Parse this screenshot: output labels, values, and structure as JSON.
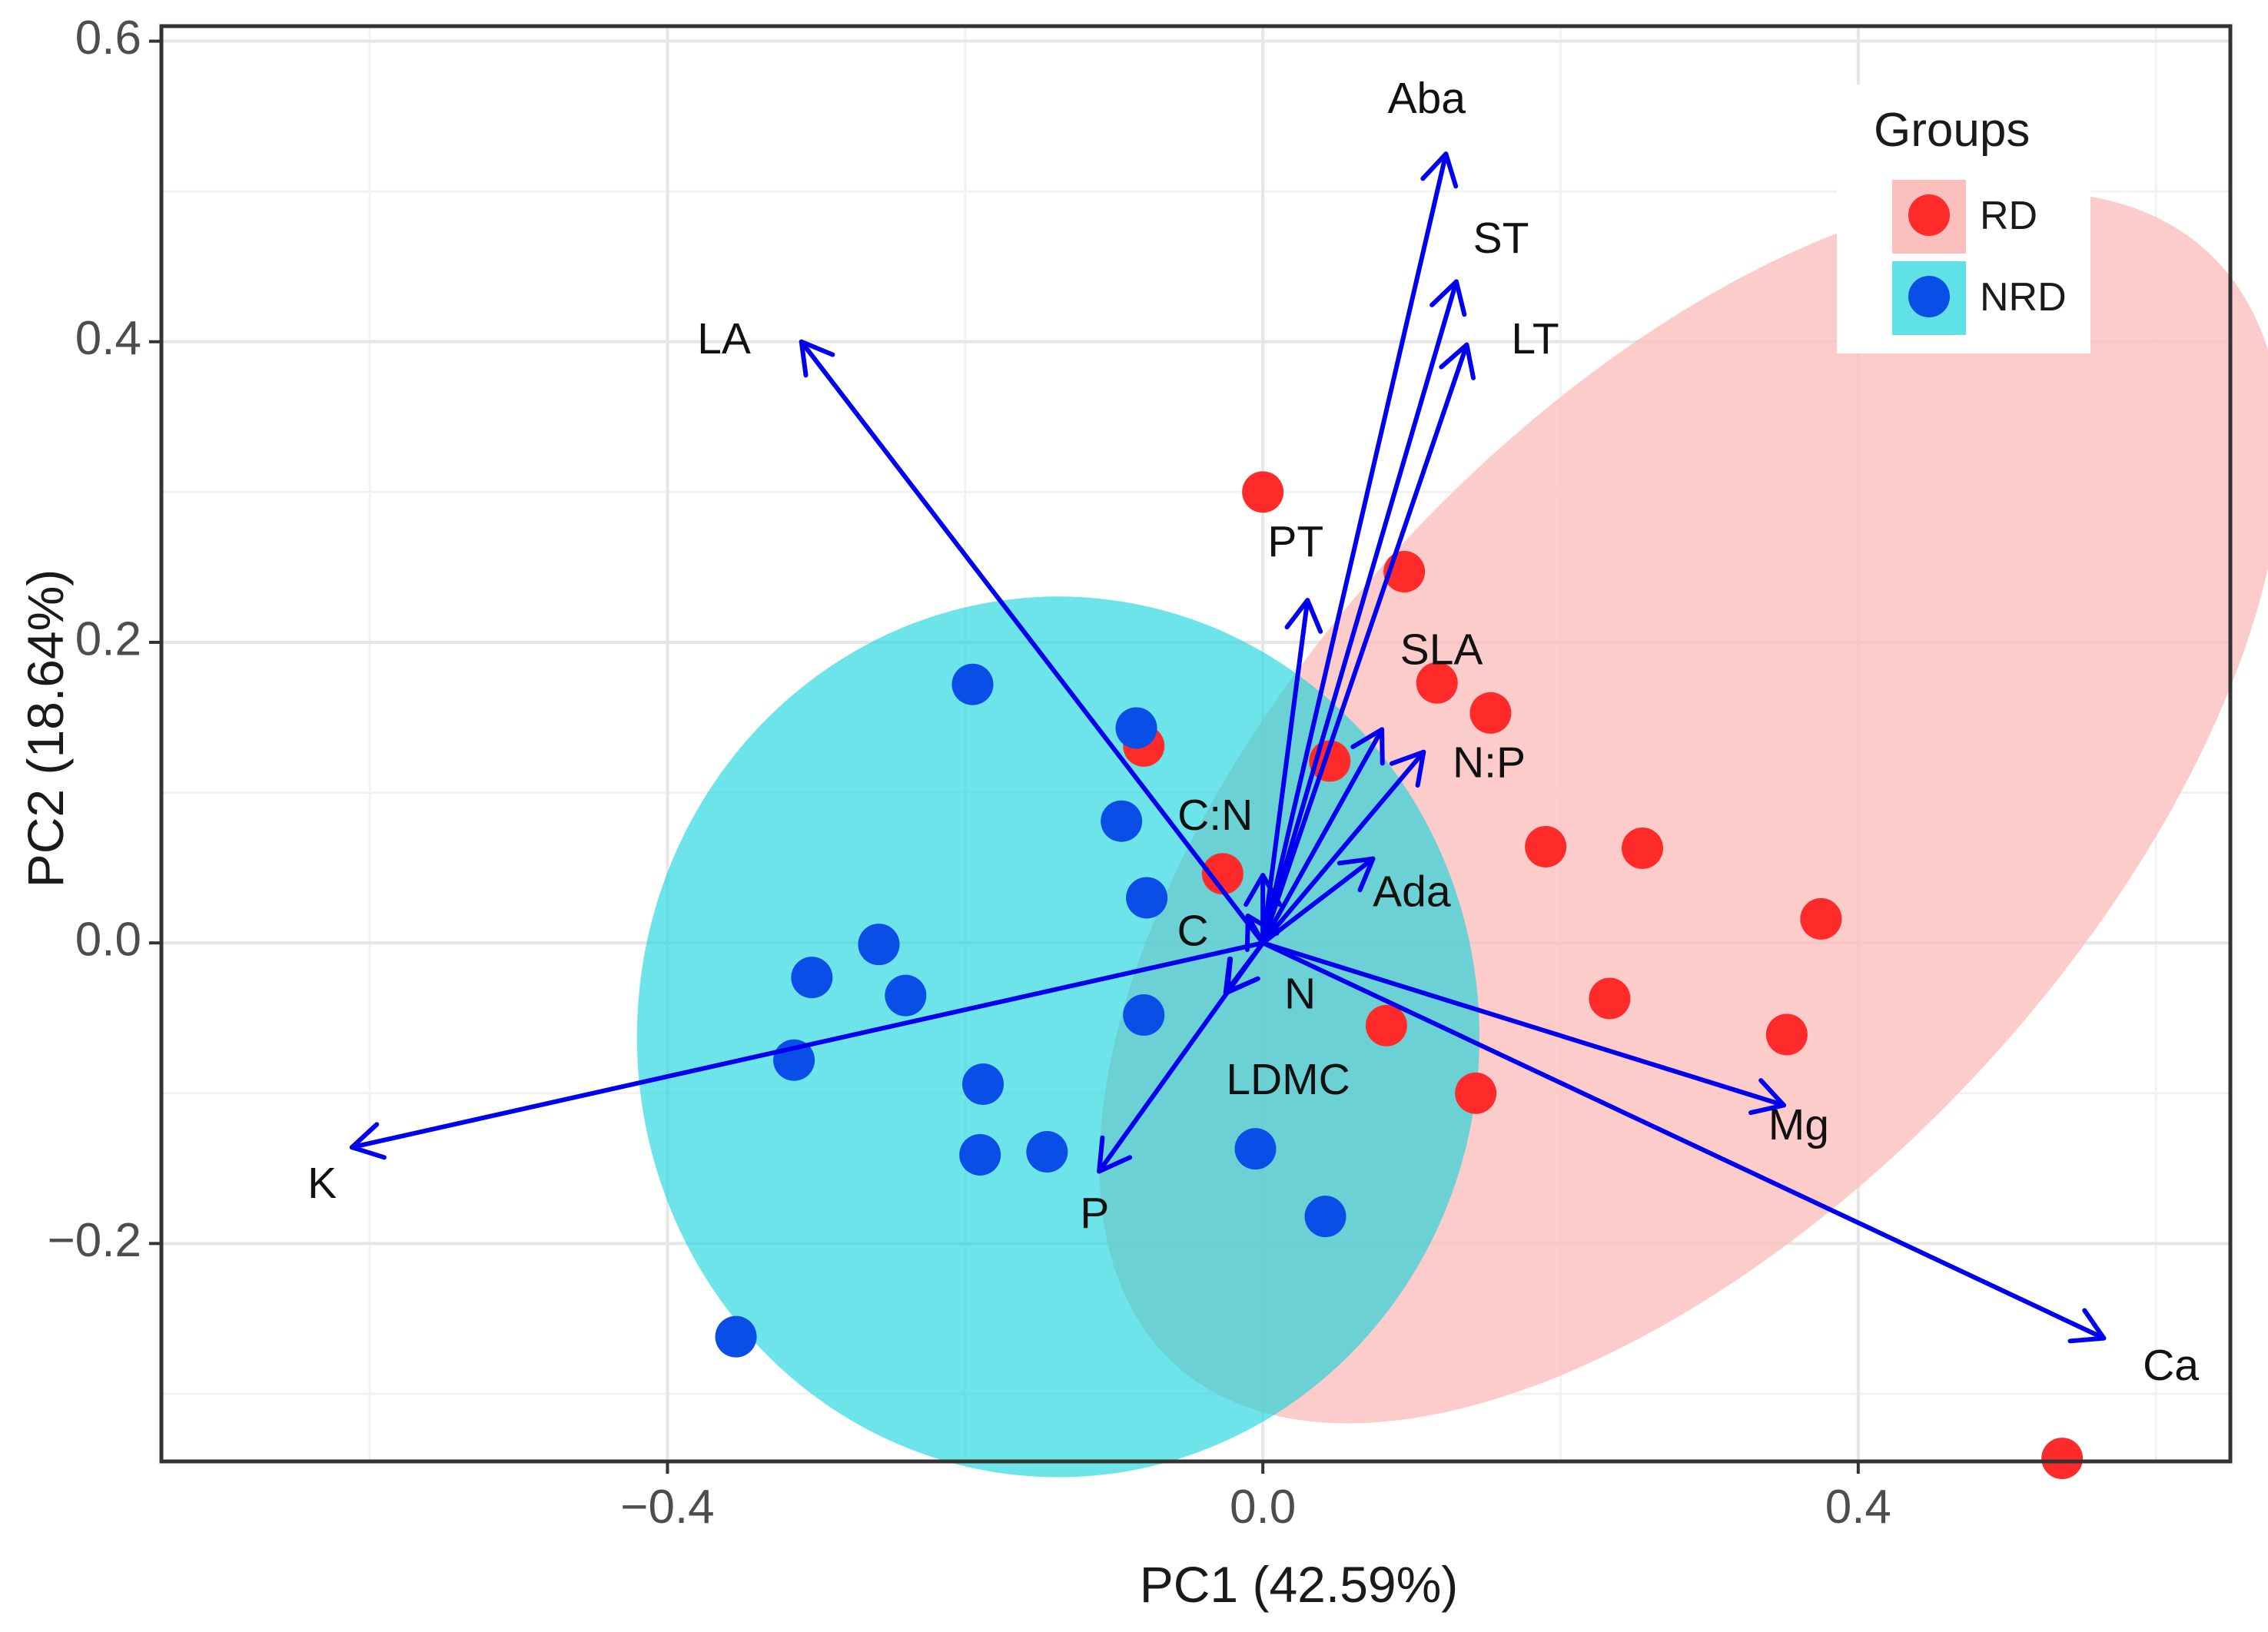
{
  "chart_data": {
    "type": "scatter",
    "subtype": "pca-biplot",
    "title": "",
    "xlabel": "PC1 (42.59%)",
    "ylabel": "PC2 (18.64%)",
    "xlim": [
      -0.74,
      0.65
    ],
    "ylim": [
      -0.345,
      0.61
    ],
    "xticks": [
      -0.4,
      0.0,
      0.4
    ],
    "xtick_labels": [
      "−0.4",
      "0.0",
      "0.4"
    ],
    "yticks": [
      -0.2,
      0.0,
      0.2,
      0.4,
      0.6
    ],
    "ytick_labels": [
      "−0.2",
      "0.0",
      "0.2",
      "0.4",
      "0.6"
    ],
    "grid": true,
    "legend": {
      "title": "Groups",
      "position": "top-right",
      "entries": [
        {
          "label": "RD",
          "color": "#ff2a2a",
          "ellipse_color": "#fbbfbd"
        },
        {
          "label": "NRD",
          "color": "#0a4ee8",
          "ellipse_color": "#5fe1e6"
        }
      ]
    },
    "ellipses": [
      {
        "group": "RD",
        "center": [
          0.2875,
          0.09
        ],
        "semi_axes": [
          0.51,
          0.26
        ],
        "angle_deg": -47,
        "color": "#fbbfbd",
        "opacity": 0.8
      },
      {
        "group": "NRD",
        "center": [
          -0.1375,
          -0.0625
        ],
        "semi_axes": [
          0.283,
          0.293
        ],
        "angle_deg": 0,
        "color": "#14d4dc",
        "opacity": 0.62
      }
    ],
    "series": [
      {
        "name": "RD",
        "color": "#ff2a2a",
        "points": [
          [
            0.0,
            0.3
          ],
          [
            0.095,
            0.247
          ],
          [
            0.117,
            0.173
          ],
          [
            0.153,
            0.153
          ],
          [
            0.19,
            0.064
          ],
          [
            0.255,
            0.063
          ],
          [
            0.375,
            0.016
          ],
          [
            0.233,
            -0.037
          ],
          [
            0.352,
            -0.061
          ],
          [
            0.143,
            -0.1
          ],
          [
            0.537,
            -0.343
          ],
          [
            -0.08,
            0.131
          ],
          [
            0.045,
            0.121
          ],
          [
            -0.027,
            0.046
          ],
          [
            0.083,
            -0.055
          ]
        ]
      },
      {
        "name": "NRD",
        "color": "#0a4ee8",
        "points": [
          [
            -0.195,
            0.172
          ],
          [
            -0.085,
            0.143
          ],
          [
            -0.095,
            0.081
          ],
          [
            -0.078,
            0.03
          ],
          [
            -0.303,
            -0.023
          ],
          [
            -0.258,
            -0.001
          ],
          [
            -0.24,
            -0.035
          ],
          [
            -0.315,
            -0.078
          ],
          [
            -0.08,
            -0.048
          ],
          [
            -0.188,
            -0.094
          ],
          [
            -0.19,
            -0.141
          ],
          [
            -0.145,
            -0.139
          ],
          [
            -0.005,
            -0.137
          ],
          [
            0.042,
            -0.182
          ],
          [
            -0.354,
            -0.262
          ]
        ]
      }
    ],
    "loadings": [
      {
        "label": "Aba",
        "x": 0.123,
        "y": 0.525,
        "label_x": 0.11,
        "label_y": 0.56
      },
      {
        "label": "ST",
        "x": 0.13,
        "y": 0.44,
        "label_x": 0.16,
        "label_y": 0.467
      },
      {
        "label": "LT",
        "x": 0.137,
        "y": 0.398,
        "label_x": 0.183,
        "label_y": 0.4
      },
      {
        "label": "LA",
        "x": -0.31,
        "y": 0.4,
        "label_x": -0.362,
        "label_y": 0.4
      },
      {
        "label": "PT",
        "x": 0.03,
        "y": 0.228,
        "label_x": 0.022,
        "label_y": 0.265
      },
      {
        "label": "SLA",
        "x": 0.08,
        "y": 0.142,
        "label_x": 0.12,
        "label_y": 0.193
      },
      {
        "label": "N:P",
        "x": 0.108,
        "y": 0.127,
        "label_x": 0.152,
        "label_y": 0.118
      },
      {
        "label": "Ada",
        "x": 0.074,
        "y": 0.056,
        "label_x": 0.1,
        "label_y": 0.032
      },
      {
        "label": "C:N",
        "x": 0.0,
        "y": 0.045,
        "label_x": -0.032,
        "label_y": 0.083
      },
      {
        "label": "C",
        "x": -0.01,
        "y": 0.018,
        "label_x": -0.047,
        "label_y": 0.006
      },
      {
        "label": "N",
        "x": -0.025,
        "y": -0.033,
        "label_x": 0.025,
        "label_y": -0.036
      },
      {
        "label": "LDMC",
        "x": -0.024,
        "y": -0.033,
        "label_x": 0.017,
        "label_y": -0.093
      },
      {
        "label": "P",
        "x": -0.11,
        "y": -0.152,
        "label_x": -0.113,
        "label_y": -0.182
      },
      {
        "label": "K",
        "x": -0.612,
        "y": -0.136,
        "label_x": -0.632,
        "label_y": -0.162
      },
      {
        "label": "Mg",
        "x": 0.35,
        "y": -0.108,
        "label_x": 0.36,
        "label_y": -0.123
      },
      {
        "label": "Ca",
        "x": 0.565,
        "y": -0.263,
        "label_x": 0.61,
        "label_y": -0.283
      }
    ],
    "arrow_color": "#0000ee"
  }
}
